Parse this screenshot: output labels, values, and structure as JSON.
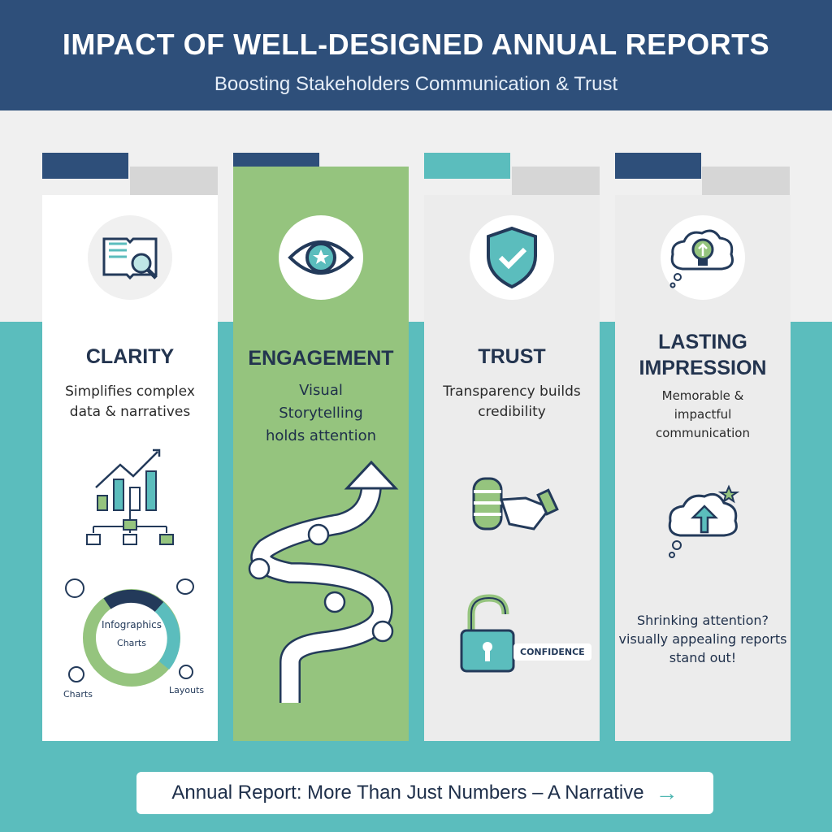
{
  "header": {
    "title": "IMPACT OF WELL-DESIGNED ANNUAL REPORTS",
    "subtitle": "Boosting Stakeholders Communication & Trust"
  },
  "colors": {
    "navy": "#2e4f7a",
    "teal": "#5bbdbd",
    "green": "#95c47e",
    "gray": "#ececec"
  },
  "columns": [
    {
      "title": "CLARITY",
      "desc": "Simplifies complex data & narratives",
      "icon": "book-magnifier-icon",
      "donut": {
        "center1": "Infographics",
        "center2": "Charts",
        "labels": [
          "Charts",
          "Layouts"
        ]
      }
    },
    {
      "title": "ENGAGEMENT",
      "desc": "Visual Storytelling holds attention",
      "icon": "eye-star-icon"
    },
    {
      "title": "TRUST",
      "desc": "Transparency builds credibility",
      "icon": "shield-check-icon",
      "badge": "CONFIDENCE"
    },
    {
      "title": "LASTING IMPRESSION",
      "desc": "Memorable & impactful communication",
      "icon": "lightbulb-cloud-icon",
      "note": "Shrinking attention? visually appealing reports stand out!"
    }
  ],
  "cta": {
    "label": "Annual Report: More Than Just Numbers – A Narrative",
    "arrow": "→"
  }
}
